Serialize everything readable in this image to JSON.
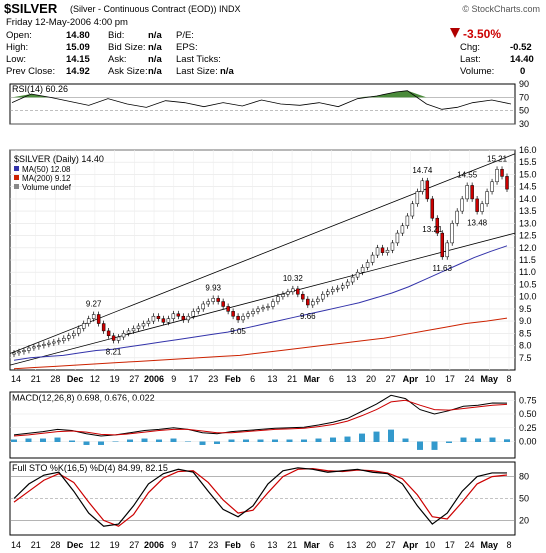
{
  "header": {
    "symbol": "$SILVER",
    "description": "(Silver - Continuous Contract (EOD)) INDX",
    "source": "© StockCharts.com",
    "date": "Friday  12-May-2006  4:00 pm",
    "open_label": "Open:",
    "open": "14.80",
    "high_label": "High:",
    "high": "15.09",
    "low_label": "Low:",
    "low": "14.15",
    "prev_label": "Prev Close:",
    "prev": "14.92",
    "bid_label": "Bid:",
    "bid": "n/a",
    "bidsize_label": "Bid Size:",
    "bidsize": "n/a",
    "ask_label": "Ask:",
    "ask": "n/a",
    "asksize_label": "Ask Size:",
    "asksize": "n/a",
    "pe_label": "P/E:",
    "eps_label": "EPS:",
    "lastticks_label": "Last Ticks:",
    "lastsize_label": "Last Size:",
    "lastsize": "n/a",
    "pct_change": "-3.50%",
    "chg_label": "Chg:",
    "chg": "-0.52",
    "last_label": "Last:",
    "last": "14.40",
    "volume_label": "Volume:",
    "volume": "0"
  },
  "colors": {
    "up": "#ffffff",
    "down": "#cc0000",
    "rsi_fill": "#4a8a3a",
    "ma50": "#3333aa",
    "ma200": "#cc2200",
    "macd_hist": "#3399cc",
    "sto_k": "#000000",
    "sto_d": "#cc0000"
  },
  "chart_data": [
    {
      "type": "line",
      "title": "RSI(14) 60.26",
      "ylim": [
        30,
        90
      ],
      "yticks": [
        30,
        50,
        70,
        90
      ],
      "yticklabels": [
        "30",
        "50",
        "70",
        "90"
      ],
      "x": [
        0,
        5,
        10,
        15,
        20,
        25,
        30,
        35,
        40,
        45,
        50,
        55,
        60,
        65,
        70,
        75,
        80,
        85,
        90,
        95,
        100,
        103,
        108,
        112,
        116,
        120,
        125,
        130
      ],
      "values": [
        62,
        75,
        70,
        64,
        58,
        68,
        60,
        55,
        65,
        62,
        56,
        62,
        57,
        66,
        60,
        58,
        62,
        56,
        68,
        72,
        78,
        80,
        60,
        52,
        55,
        62,
        66,
        60
      ]
    },
    {
      "type": "candlestick",
      "title": "$SILVER (Daily) 14.40",
      "legend": [
        "MA(50) 12.08",
        "MA(200) 9.12",
        "Volume undef"
      ],
      "ylim": [
        7.0,
        16.0
      ],
      "yticks": [
        7.5,
        8.0,
        8.5,
        9.0,
        9.5,
        10.0,
        10.5,
        11.0,
        11.5,
        12.0,
        12.5,
        13.0,
        13.5,
        14.0,
        14.5,
        15.0,
        15.5,
        16.0
      ],
      "yticklabels": [
        "7.5",
        "8.0",
        "8.5",
        "9.0",
        "9.5",
        "10.0",
        "10.5",
        "11.0",
        "11.5",
        "12.0",
        "12.5",
        "13.0",
        "13.5",
        "14.0",
        "14.5",
        "15.0",
        "15.5",
        "16.0"
      ],
      "xticks": [
        "14",
        "21",
        "28",
        "Dec",
        "12",
        "19",
        "27",
        "2006",
        "9",
        "17",
        "23",
        "Feb",
        "6",
        "13",
        "21",
        "Mar",
        "6",
        "13",
        "20",
        "27",
        "Apr",
        "10",
        "17",
        "24",
        "May",
        "8"
      ],
      "annotations": [
        "9.27",
        "8.21",
        "9.93",
        "9.05",
        "10.32",
        "9.66",
        "14.74",
        "13.21",
        "11.63",
        "14.55",
        "13.48",
        "15.21"
      ],
      "closes": [
        7.7,
        7.75,
        7.8,
        7.9,
        7.95,
        8.0,
        8.05,
        8.1,
        8.15,
        8.2,
        8.3,
        8.4,
        8.5,
        8.7,
        8.9,
        9.1,
        9.27,
        8.9,
        8.6,
        8.4,
        8.21,
        8.35,
        8.5,
        8.6,
        8.7,
        8.8,
        8.9,
        9.0,
        9.2,
        9.1,
        8.95,
        9.1,
        9.3,
        9.2,
        9.05,
        9.2,
        9.4,
        9.5,
        9.7,
        9.8,
        9.93,
        9.8,
        9.6,
        9.4,
        9.2,
        9.05,
        9.2,
        9.3,
        9.4,
        9.5,
        9.55,
        9.6,
        9.8,
        10.0,
        10.1,
        10.2,
        10.32,
        10.1,
        9.9,
        9.66,
        9.8,
        9.9,
        10.1,
        10.2,
        10.3,
        10.35,
        10.45,
        10.6,
        10.8,
        11.0,
        11.2,
        11.4,
        11.7,
        12.0,
        11.8,
        11.9,
        12.2,
        12.6,
        12.9,
        13.3,
        13.8,
        14.3,
        14.74,
        14.0,
        13.21,
        12.6,
        11.63,
        12.2,
        13.0,
        13.5,
        14.0,
        14.55,
        14.0,
        13.48,
        13.8,
        14.3,
        14.7,
        15.21,
        14.92,
        14.4
      ],
      "ma50": [
        7.4,
        7.5,
        7.55,
        7.6,
        7.7,
        7.8,
        7.85,
        7.95,
        8.05,
        8.15,
        8.25,
        8.35,
        8.45,
        8.55,
        8.7,
        8.85,
        9.0,
        9.15,
        9.3,
        9.45,
        9.6,
        9.75,
        9.95,
        10.15,
        10.4,
        10.7,
        11.0,
        11.3,
        11.6,
        11.85,
        12.08
      ],
      "ma200": [
        7.05,
        7.1,
        7.15,
        7.2,
        7.25,
        7.3,
        7.35,
        7.4,
        7.45,
        7.5,
        7.55,
        7.6,
        7.7,
        7.8,
        7.9,
        8.0,
        8.1,
        8.2,
        8.3,
        8.45,
        8.6,
        8.75,
        8.9,
        9.0,
        9.12
      ]
    },
    {
      "type": "line",
      "title": "MACD(12,26,8) 0.698, 0.676, 0.022",
      "ylim": [
        -0.3,
        0.9
      ],
      "yticks": [
        0.0,
        0.25,
        0.5,
        0.75
      ],
      "yticklabels": [
        "0.00",
        "0.25",
        "0.50",
        "0.75"
      ],
      "series": [
        {
          "name": "MACD",
          "values": [
            0.12,
            0.15,
            0.18,
            0.22,
            0.2,
            0.14,
            0.1,
            0.12,
            0.16,
            0.2,
            0.22,
            0.25,
            0.22,
            0.16,
            0.14,
            0.18,
            0.2,
            0.22,
            0.24,
            0.25,
            0.26,
            0.3,
            0.35,
            0.42,
            0.55,
            0.68,
            0.84,
            0.78,
            0.58,
            0.5,
            0.56,
            0.64,
            0.66,
            0.7,
            0.698
          ]
        },
        {
          "name": "Signal",
          "values": [
            0.1,
            0.12,
            0.15,
            0.18,
            0.19,
            0.17,
            0.13,
            0.12,
            0.14,
            0.17,
            0.2,
            0.22,
            0.22,
            0.19,
            0.16,
            0.16,
            0.18,
            0.2,
            0.22,
            0.23,
            0.24,
            0.27,
            0.31,
            0.37,
            0.47,
            0.58,
            0.72,
            0.75,
            0.66,
            0.58,
            0.57,
            0.6,
            0.63,
            0.66,
            0.676
          ]
        }
      ]
    },
    {
      "type": "line",
      "title": "Full STO %K(16,5) %D(4) 84.99, 82.15",
      "ylim": [
        0,
        100
      ],
      "yticks": [
        20,
        50,
        80
      ],
      "yticklabels": [
        "20",
        "50",
        "80"
      ],
      "series": [
        {
          "name": "%K",
          "values": [
            50,
            70,
            82,
            86,
            60,
            30,
            12,
            15,
            40,
            70,
            84,
            90,
            86,
            60,
            35,
            25,
            40,
            70,
            88,
            92,
            90,
            86,
            88,
            90,
            86,
            84,
            70,
            40,
            15,
            30,
            60,
            80,
            85,
            84.99
          ]
        },
        {
          "name": "%D",
          "values": [
            45,
            60,
            75,
            84,
            72,
            45,
            20,
            12,
            28,
            58,
            78,
            87,
            88,
            72,
            48,
            30,
            34,
            58,
            80,
            90,
            91,
            88,
            87,
            89,
            88,
            85,
            77,
            55,
            25,
            22,
            45,
            70,
            80,
            82.15
          ]
        }
      ]
    }
  ]
}
